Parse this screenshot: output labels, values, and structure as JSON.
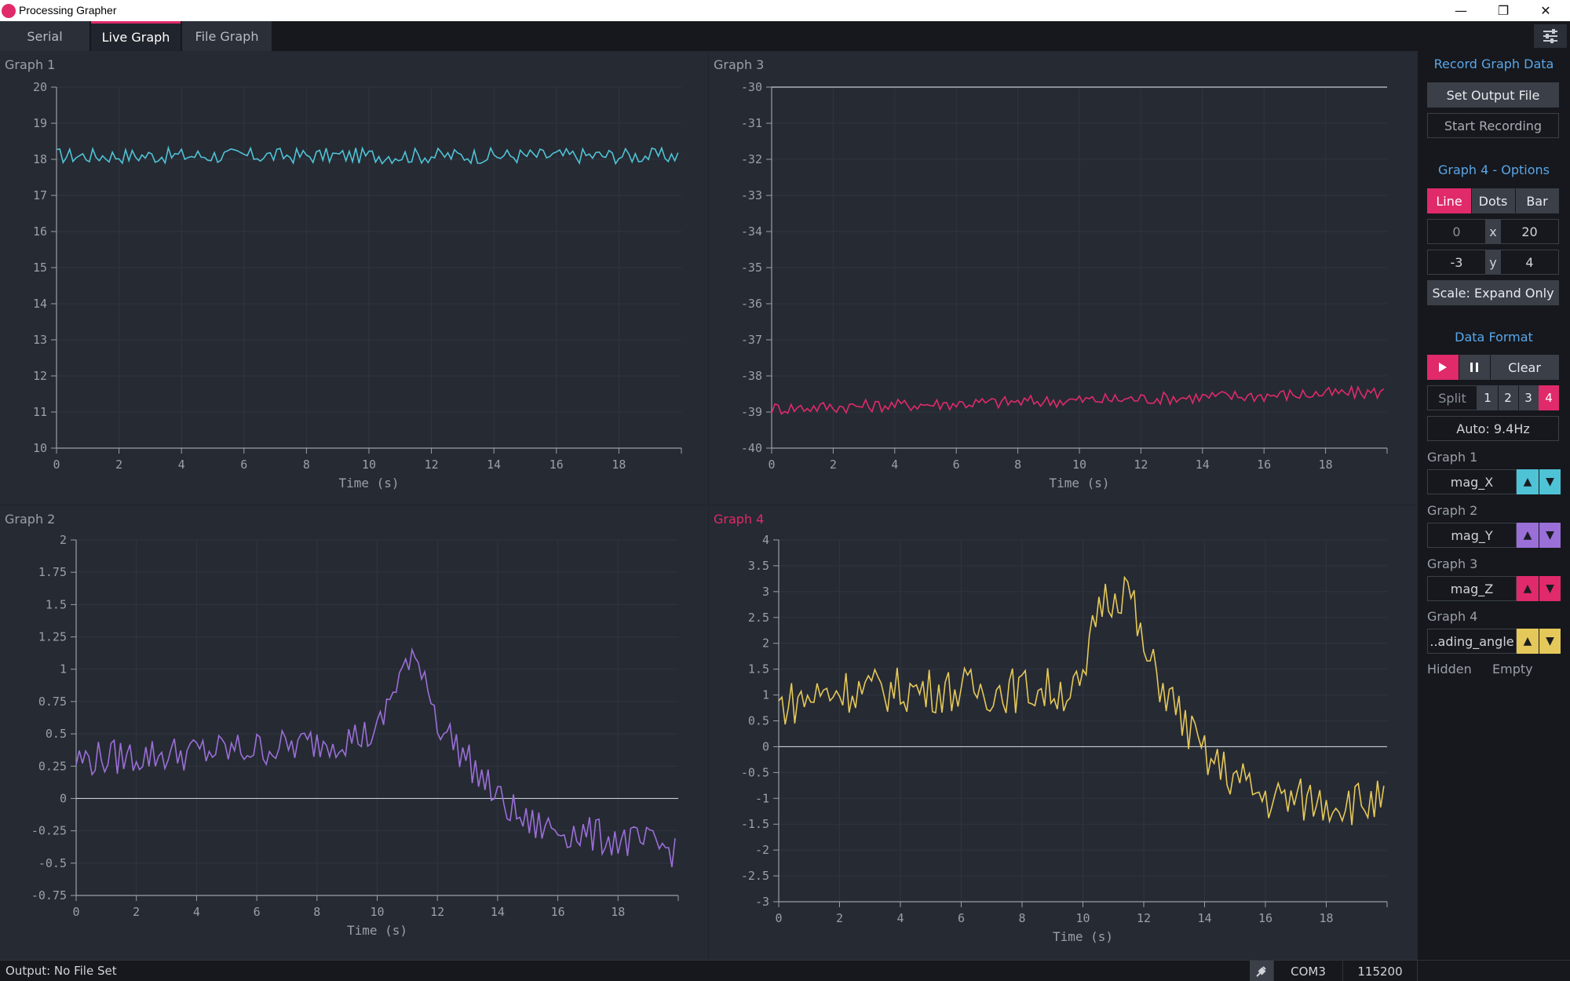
{
  "window": {
    "title": "Processing Grapher"
  },
  "tabs": [
    {
      "label": "Serial",
      "active": false
    },
    {
      "label": "Live Graph",
      "active": true
    },
    {
      "label": "File Graph",
      "active": false
    }
  ],
  "graphs": [
    {
      "title": "Graph 1",
      "selected": false,
      "color": "#4fc3d6",
      "xlabel": "Time (s)",
      "xticks": [
        "0",
        "2",
        "4",
        "6",
        "8",
        "10",
        "12",
        "14",
        "16",
        "18"
      ],
      "yticks": [
        "10",
        "11",
        "12",
        "13",
        "14",
        "15",
        "16",
        "17",
        "18",
        "19",
        "20"
      ],
      "chart_data": {
        "type": "line",
        "xlim": [
          0,
          20
        ],
        "ylim": [
          10,
          20
        ],
        "signal": "mag_X",
        "baseline": 18.1,
        "noise": 0.22,
        "zero_line": false
      }
    },
    {
      "title": "Graph 3",
      "selected": false,
      "color": "#e02a6a",
      "xlabel": "Time (s)",
      "xticks": [
        "0",
        "2",
        "4",
        "6",
        "8",
        "10",
        "12",
        "14",
        "16",
        "18"
      ],
      "yticks": [
        "-40",
        "-39",
        "-38",
        "-37",
        "-36",
        "-35",
        "-34",
        "-33",
        "-32",
        "-31",
        "-30"
      ],
      "chart_data": {
        "type": "line",
        "xlim": [
          0,
          20
        ],
        "ylim": [
          -40,
          -30
        ],
        "signal": "mag_Z",
        "baseline": -38.9,
        "trend_end": -38.45,
        "noise": 0.18,
        "top_line": true
      }
    },
    {
      "title": "Graph 2",
      "selected": false,
      "color": "#9a6fd8",
      "xlabel": "Time (s)",
      "xticks": [
        "0",
        "2",
        "4",
        "6",
        "8",
        "10",
        "12",
        "14",
        "16",
        "18"
      ],
      "yticks": [
        "-0.75",
        "-0.5",
        "-0.25",
        "0",
        "0.25",
        "0.5",
        "0.75",
        "1",
        "1.25",
        "1.5",
        "1.75",
        "2"
      ],
      "chart_data": {
        "type": "line",
        "xlim": [
          0,
          20
        ],
        "ylim": [
          -0.75,
          2
        ],
        "signal": "mag_Y",
        "zero_line": true,
        "segments": [
          [
            0,
            0.3
          ],
          [
            7,
            0.4
          ],
          [
            10,
            0.5
          ],
          [
            10.8,
            1.0
          ],
          [
            11.5,
            1.05
          ],
          [
            12,
            0.6
          ],
          [
            13,
            0.3
          ],
          [
            14,
            0.0
          ],
          [
            15,
            -0.2
          ],
          [
            20,
            -0.4
          ]
        ],
        "noise": 0.14
      }
    },
    {
      "title": "Graph 4",
      "selected": true,
      "color": "#e4c85a",
      "xlabel": "Time (s)",
      "xticks": [
        "0",
        "2",
        "4",
        "6",
        "8",
        "10",
        "12",
        "14",
        "16",
        "18"
      ],
      "yticks": [
        "-3",
        "-2.5",
        "-2",
        "-1.5",
        "-1",
        "-0.5",
        "0",
        "0.5",
        "1",
        "1.5",
        "2",
        "2.5",
        "3",
        "3.5",
        "4"
      ],
      "chart_data": {
        "type": "line",
        "xlim": [
          0,
          20
        ],
        "ylim": [
          -3,
          4
        ],
        "signal": "heading_angle",
        "zero_line": true,
        "segments": [
          [
            0,
            0.8
          ],
          [
            2,
            1.1
          ],
          [
            6,
            1.1
          ],
          [
            10,
            1.1
          ],
          [
            10.5,
            2.8
          ],
          [
            11.5,
            3.1
          ],
          [
            12,
            1.8
          ],
          [
            13,
            0.8
          ],
          [
            14,
            -0.2
          ],
          [
            15,
            -0.6
          ],
          [
            16,
            -1.0
          ],
          [
            20,
            -1.1
          ]
        ],
        "noise": 0.45
      }
    }
  ],
  "sidebar": {
    "record_title": "Record Graph Data",
    "set_output_file": "Set Output File",
    "start_recording": "Start Recording",
    "options_title": "Graph 4 - Options",
    "style_buttons": [
      "Line",
      "Dots",
      "Bar"
    ],
    "x_min": "0",
    "x_sep": "x",
    "x_max": "20",
    "y_min": "-3",
    "y_sep": "y",
    "y_max": "4",
    "scale_mode": "Scale: Expand Only",
    "format_title": "Data Format",
    "play_icon": "play-icon",
    "pause_icon": "pause-icon",
    "clear": "Clear",
    "split_label": "Split",
    "split_options": [
      "1",
      "2",
      "3",
      "4"
    ],
    "auto_rate": "Auto: 9.4Hz",
    "signals": [
      {
        "label": "Graph 1",
        "name": "mag_X",
        "color": "#4fc3d6"
      },
      {
        "label": "Graph 2",
        "name": "mag_Y",
        "color": "#9a6fd8"
      },
      {
        "label": "Graph 3",
        "name": "mag_Z",
        "color": "#e02a6a"
      },
      {
        "label": "Graph 4",
        "name": "..ading_angle",
        "color": "#e4c85a"
      }
    ],
    "hidden": "Hidden",
    "empty": "Empty"
  },
  "status": {
    "output": "Output: No File Set",
    "port": "COM3",
    "baud": "115200"
  },
  "colors": {
    "accent": "#e02a6a",
    "link": "#5aa6e8"
  }
}
